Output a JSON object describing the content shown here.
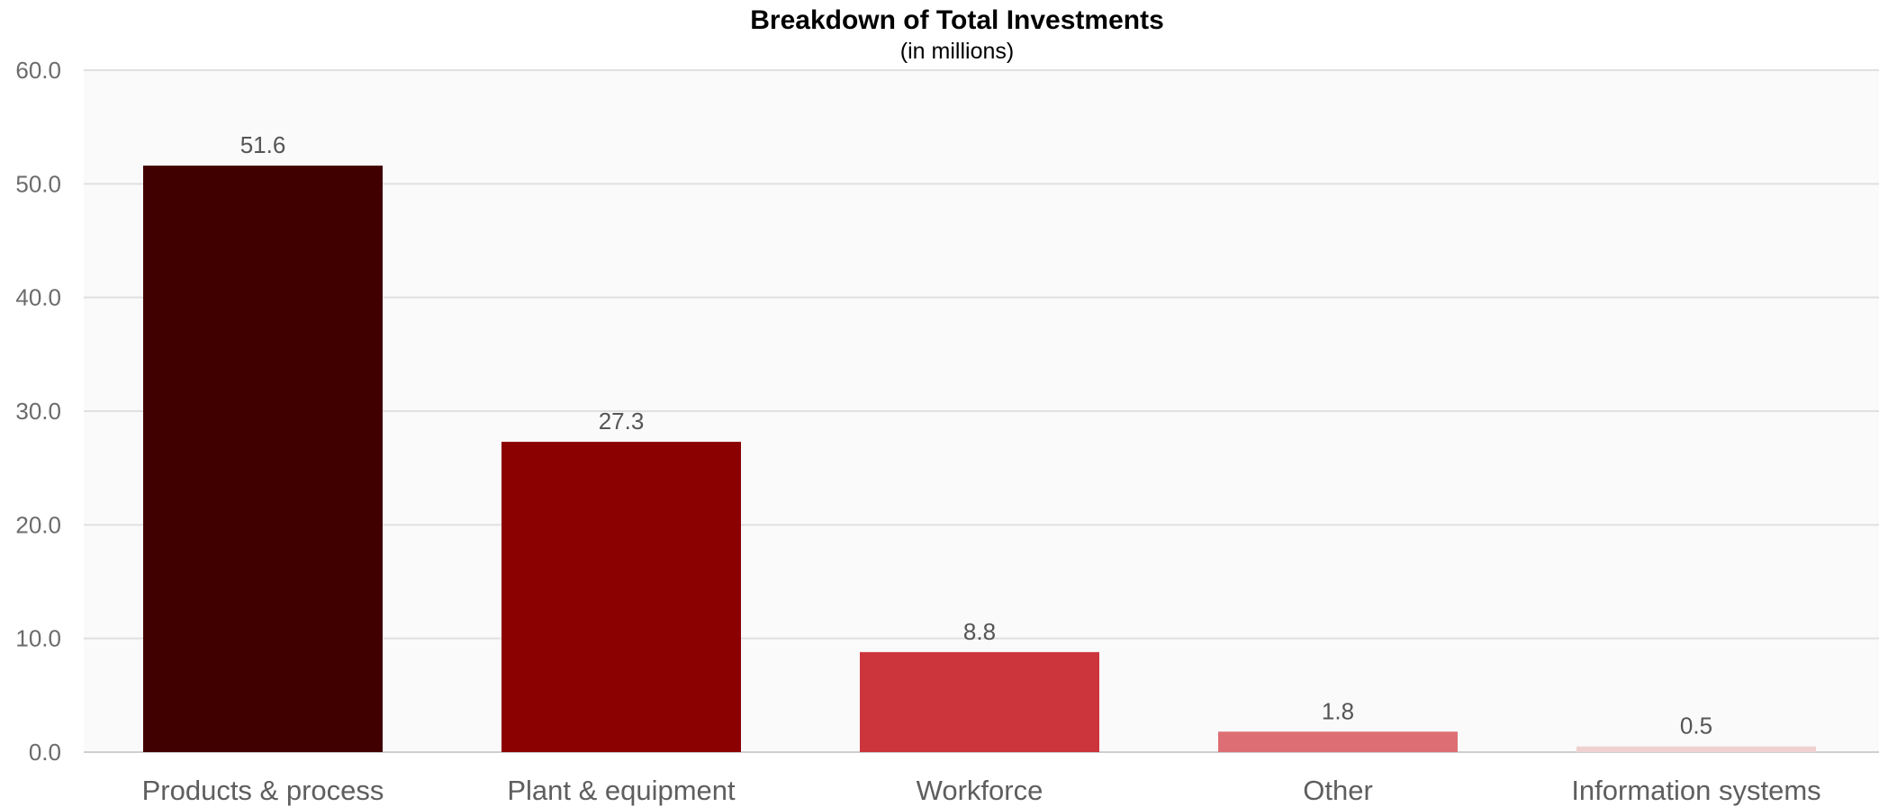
{
  "chart_data": {
    "type": "bar",
    "title": "Breakdown of Total Investments",
    "subtitle": "(in millions)",
    "xlabel": "",
    "ylabel": "",
    "categories": [
      "Products & process",
      "Plant & equipment",
      "Workforce",
      "Other",
      "Information systems"
    ],
    "values": [
      51.6,
      27.3,
      8.8,
      1.8,
      0.5
    ],
    "value_labels": [
      "51.6",
      "27.3",
      "8.8",
      "1.8",
      "0.5"
    ],
    "colors": [
      "#400000",
      "#8b0000",
      "#cc353c",
      "#dd6f74",
      "#f0d1d1"
    ],
    "ylim": [
      0,
      60
    ],
    "yticks": [
      0,
      10,
      20,
      30,
      40,
      50,
      60
    ],
    "ytick_labels": [
      "0.0",
      "10.0",
      "20.0",
      "30.0",
      "40.0",
      "50.0",
      "60.0"
    ],
    "grid": true,
    "plot_background": "#fafafa",
    "gridline_color": "#e0e0e0",
    "legend": "none"
  }
}
